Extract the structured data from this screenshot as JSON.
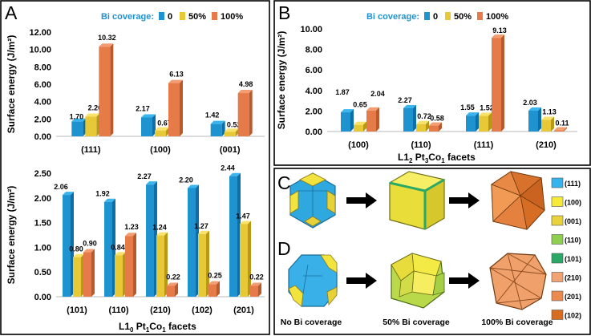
{
  "colors": {
    "s0": [
      "#3bb5ee",
      "#1f93d0",
      "#0d6fa8"
    ],
    "s50": [
      "#f8e26a",
      "#e7c938",
      "#b99817"
    ],
    "s100": [
      "#f59d72",
      "#e67b4a",
      "#b85a2e"
    ],
    "legend_text": "#1f93d0"
  },
  "panel_labels": {
    "a": "A",
    "b": "B",
    "c": "C",
    "d": "D"
  },
  "chart_data": [
    {
      "id": "A_top",
      "type": "bar",
      "legend_title": "Bi coverage:",
      "legend": [
        "0",
        "50%",
        "100%"
      ],
      "ylabel": "Surface energy (J/m²)",
      "ylim": [
        0,
        12
      ],
      "yticks": [
        "0.00",
        "2.00",
        "4.00",
        "6.00",
        "8.00",
        "10.00",
        "12.00"
      ],
      "categories": [
        "(111)",
        "(100)",
        "(001)"
      ],
      "series": [
        {
          "name": "0",
          "values": [
            1.7,
            2.17,
            1.42
          ],
          "labels": [
            "1.70",
            "2.17",
            "1.42"
          ]
        },
        {
          "name": "50%",
          "values": [
            2.26,
            0.67,
            0.52
          ],
          "labels": [
            "2.26",
            "0.67",
            "0.52"
          ]
        },
        {
          "name": "100%",
          "values": [
            10.32,
            6.13,
            4.98
          ],
          "labels": [
            "10.32",
            "6.13",
            "4.98"
          ]
        }
      ]
    },
    {
      "id": "A_bottom",
      "type": "bar",
      "ylabel": "Surface energy (J/m²)",
      "ylim": [
        0,
        2.5
      ],
      "yticks": [
        "0.00",
        "0.50",
        "1.00",
        "1.50",
        "2.00",
        "2.50"
      ],
      "categories": [
        "(101)",
        "(110)",
        "(210)",
        "(102)",
        "(201)"
      ],
      "xtitle": {
        "pre": "L1",
        "sub": "0",
        "mid": " Pt",
        "sub2": "1",
        "mid2": "Co",
        "sub3": "1",
        "post": " facets"
      },
      "series": [
        {
          "name": "0",
          "values": [
            2.06,
            1.92,
            2.27,
            2.2,
            2.44
          ],
          "labels": [
            "2.06",
            "1.92",
            "2.27",
            "2.20",
            "2.44"
          ]
        },
        {
          "name": "50%",
          "values": [
            0.8,
            0.84,
            1.24,
            1.27,
            1.47
          ],
          "labels": [
            "0.80",
            "0.84",
            "1.24",
            "1.27",
            "1.47"
          ]
        },
        {
          "name": "100%",
          "values": [
            0.9,
            1.23,
            0.22,
            0.25,
            0.22
          ],
          "labels": [
            "0.90",
            "1.23",
            "0.22",
            "0.25",
            "0.22"
          ]
        }
      ]
    },
    {
      "id": "B",
      "type": "bar",
      "legend_title": "Bi coverage:",
      "legend": [
        "0",
        "50%",
        "100%"
      ],
      "ylabel": "Surface energy (J/m²)",
      "ylim": [
        0,
        10
      ],
      "yticks": [
        "0.00",
        "2.00",
        "4.00",
        "6.00",
        "8.00",
        "10.00"
      ],
      "categories": [
        "(100)",
        "(110)",
        "(111)",
        "(210)"
      ],
      "xtitle": {
        "pre": "L1",
        "sub": "2",
        "mid": " Pt",
        "sub2": "3",
        "mid2": "Co",
        "sub3": "1",
        "post": " facets"
      },
      "series": [
        {
          "name": "0",
          "values": [
            1.87,
            2.27,
            1.55,
            2.03
          ],
          "labels": [
            "1.87",
            "2.27",
            "1.55",
            "2.03"
          ]
        },
        {
          "name": "50%",
          "values": [
            0.65,
            0.72,
            1.52,
            1.13
          ],
          "labels": [
            "0.65",
            "0.72",
            "1.52",
            "1.13"
          ]
        },
        {
          "name": "100%",
          "values": [
            2.04,
            0.58,
            9.13,
            0.11
          ],
          "labels": [
            "2.04",
            "0.58",
            "9.13",
            "0.11"
          ]
        }
      ]
    }
  ],
  "morph_legend": [
    {
      "label": "(111)",
      "color": "#34b3ec"
    },
    {
      "label": "(100)",
      "color": "#f6ea3a"
    },
    {
      "label": "(001)",
      "color": "#e8d43a"
    },
    {
      "label": "(110)",
      "color": "#8fcf4f"
    },
    {
      "label": "(101)",
      "color": "#2aa866"
    },
    {
      "label": "(210)",
      "color": "#f2a273"
    },
    {
      "label": "(201)",
      "color": "#ea8a4f"
    },
    {
      "label": "(102)",
      "color": "#d86d22"
    }
  ],
  "captions": [
    "No Bi coverage",
    "50% Bi coverage",
    "100% Bi coverage"
  ]
}
